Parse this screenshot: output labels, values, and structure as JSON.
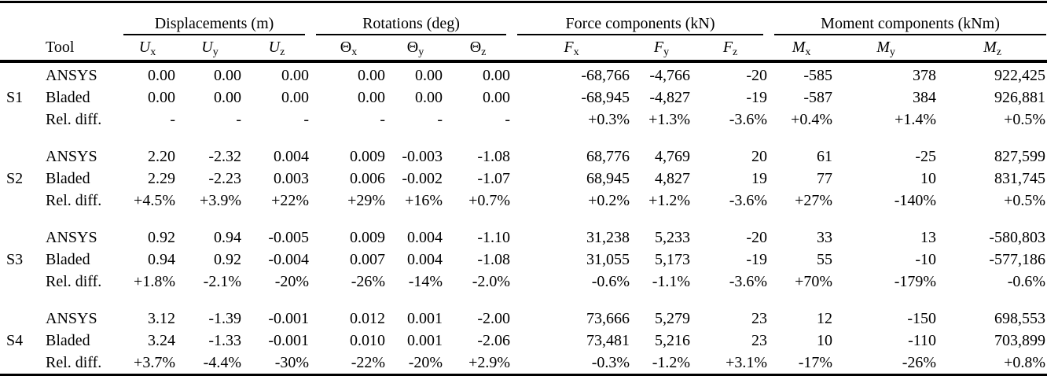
{
  "colors": {
    "background": "#ffffff",
    "text": "#000000",
    "rule": "#000000"
  },
  "table": {
    "tool_header": "Tool",
    "groups": [
      {
        "label": "Displacements (m)"
      },
      {
        "label": "Rotations (deg)"
      },
      {
        "label": "Force components (kN)"
      },
      {
        "label": "Moment components (kNm)"
      }
    ],
    "columns": [
      {
        "base": "U",
        "sub": "x"
      },
      {
        "base": "U",
        "sub": "y"
      },
      {
        "base": "U",
        "sub": "z"
      },
      {
        "base": "Θ",
        "sub": "x"
      },
      {
        "base": "Θ",
        "sub": "y"
      },
      {
        "base": "Θ",
        "sub": "z"
      },
      {
        "base": "F",
        "sub": "x"
      },
      {
        "base": "F",
        "sub": "y"
      },
      {
        "base": "F",
        "sub": "z"
      },
      {
        "base": "M",
        "sub": "x"
      },
      {
        "base": "M",
        "sub": "y"
      },
      {
        "base": "M",
        "sub": "z"
      }
    ],
    "sections": [
      {
        "id": "S1",
        "rows": [
          {
            "tool": "ANSYS",
            "values": [
              "0.00",
              "0.00",
              "0.00",
              "0.00",
              "0.00",
              "0.00",
              "-68,766",
              "-4,766",
              "-20",
              "-585",
              "378",
              "922,425"
            ]
          },
          {
            "tool": "Bladed",
            "values": [
              "0.00",
              "0.00",
              "0.00",
              "0.00",
              "0.00",
              "0.00",
              "-68,945",
              "-4,827",
              "-19",
              "-587",
              "384",
              "926,881"
            ]
          },
          {
            "tool": "Rel. diff.",
            "values": [
              "-",
              "-",
              "-",
              "-",
              "-",
              "-",
              "+0.3%",
              "+1.3%",
              "-3.6%",
              "+0.4%",
              "+1.4%",
              "+0.5%"
            ]
          }
        ]
      },
      {
        "id": "S2",
        "rows": [
          {
            "tool": "ANSYS",
            "values": [
              "2.20",
              "-2.32",
              "0.004",
              "0.009",
              "-0.003",
              "-1.08",
              "68,776",
              "4,769",
              "20",
              "61",
              "-25",
              "827,599"
            ]
          },
          {
            "tool": "Bladed",
            "values": [
              "2.29",
              "-2.23",
              "0.003",
              "0.006",
              "-0.002",
              "-1.07",
              "68,945",
              "4,827",
              "19",
              "77",
              "10",
              "831,745"
            ]
          },
          {
            "tool": "Rel. diff.",
            "values": [
              "+4.5%",
              "+3.9%",
              "+22%",
              "+29%",
              "+16%",
              "+0.7%",
              "+0.2%",
              "+1.2%",
              "-3.6%",
              "+27%",
              "-140%",
              "+0.5%"
            ]
          }
        ]
      },
      {
        "id": "S3",
        "rows": [
          {
            "tool": "ANSYS",
            "values": [
              "0.92",
              "0.94",
              "-0.005",
              "0.009",
              "0.004",
              "-1.10",
              "31,238",
              "5,233",
              "-20",
              "33",
              "13",
              "-580,803"
            ]
          },
          {
            "tool": "Bladed",
            "values": [
              "0.94",
              "0.92",
              "-0.004",
              "0.007",
              "0.004",
              "-1.08",
              "31,055",
              "5,173",
              "-19",
              "55",
              "-10",
              "-577,186"
            ]
          },
          {
            "tool": "Rel. diff.",
            "values": [
              "+1.8%",
              "-2.1%",
              "-20%",
              "-26%",
              "-14%",
              "-2.0%",
              "-0.6%",
              "-1.1%",
              "-3.6%",
              "+70%",
              "-179%",
              "-0.6%"
            ]
          }
        ]
      },
      {
        "id": "S4",
        "rows": [
          {
            "tool": "ANSYS",
            "values": [
              "3.12",
              "-1.39",
              "-0.001",
              "0.012",
              "0.001",
              "-2.00",
              "73,666",
              "5,279",
              "23",
              "12",
              "-150",
              "698,553"
            ]
          },
          {
            "tool": "Bladed",
            "values": [
              "3.24",
              "-1.33",
              "-0.001",
              "0.010",
              "0.001",
              "-2.06",
              "73,481",
              "5,216",
              "23",
              "10",
              "-110",
              "703,899"
            ]
          },
          {
            "tool": "Rel. diff.",
            "values": [
              "+3.7%",
              "-4.4%",
              "-30%",
              "-22%",
              "-20%",
              "+2.9%",
              "-0.3%",
              "-1.2%",
              "+3.1%",
              "-17%",
              "-26%",
              "+0.8%"
            ]
          }
        ]
      }
    ]
  }
}
